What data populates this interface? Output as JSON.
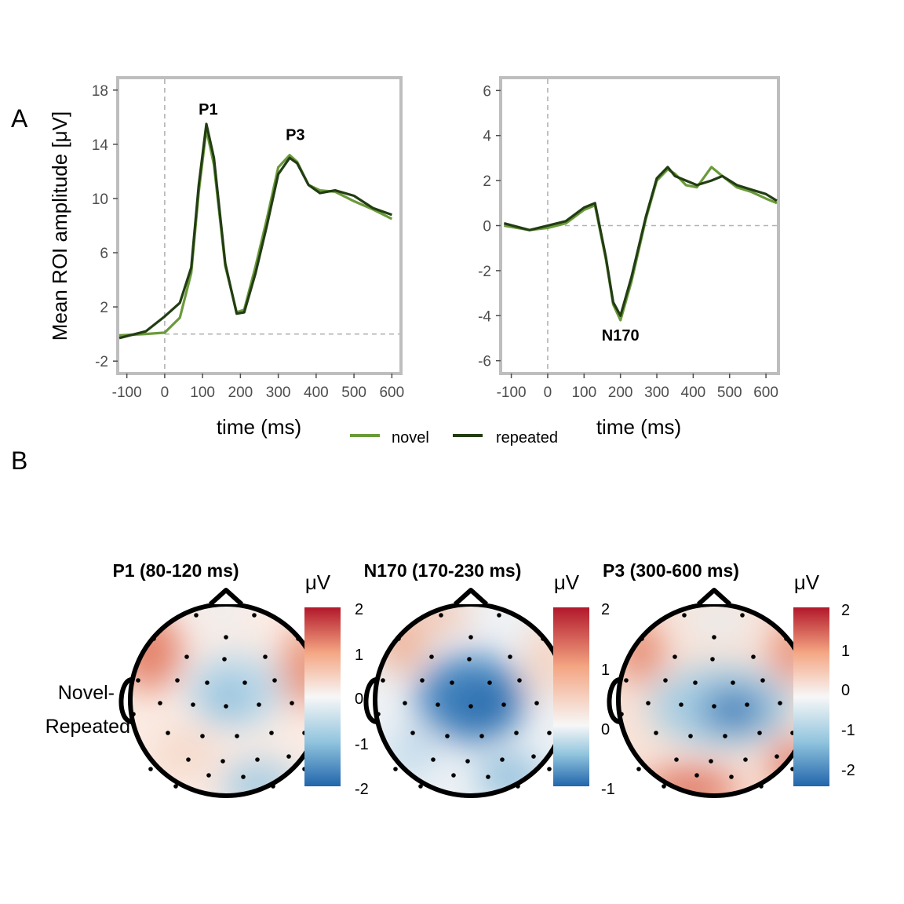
{
  "panel_labels": [
    "A",
    "B"
  ],
  "colors": {
    "novel": "#6a9a3a",
    "repeated": "#223d13"
  },
  "legend": [
    {
      "label": "novel",
      "color": "#6a9a3a"
    },
    {
      "label": "repeated",
      "color": "#223d13"
    }
  ],
  "chart_data": [
    {
      "type": "line",
      "xlabel": "time (ms)",
      "ylabel": "Mean ROI amplitude [μV]",
      "xlim": [
        -120,
        620
      ],
      "ylim": [
        -2.8,
        18.8
      ],
      "xticks": [
        -100,
        0,
        100,
        200,
        300,
        400,
        500,
        600
      ],
      "yticks": [
        -2,
        2,
        6,
        10,
        14,
        18
      ],
      "reference_lines": {
        "x": 0,
        "y": 0
      },
      "annotations": [
        {
          "text": "P1",
          "x": 115,
          "y": 16.2
        },
        {
          "text": "P3",
          "x": 345,
          "y": 14.3
        }
      ],
      "series": [
        {
          "name": "novel",
          "x": [
            -120,
            -50,
            0,
            40,
            70,
            90,
            110,
            130,
            160,
            190,
            210,
            240,
            270,
            300,
            330,
            350,
            380,
            410,
            450,
            500,
            550,
            600
          ],
          "y": [
            -0.1,
            0,
            0.1,
            1.2,
            4.5,
            10.5,
            15.1,
            12.5,
            5,
            1.6,
            1.8,
            5,
            8.5,
            12.3,
            13.2,
            12.7,
            11,
            10.6,
            10.5,
            9.8,
            9.2,
            8.5
          ]
        },
        {
          "name": "repeated",
          "x": [
            -120,
            -50,
            0,
            40,
            70,
            90,
            110,
            130,
            160,
            190,
            210,
            240,
            270,
            300,
            330,
            350,
            380,
            410,
            450,
            500,
            550,
            600
          ],
          "y": [
            -0.3,
            0.2,
            1.3,
            2.3,
            4.9,
            11,
            15.5,
            13,
            5.2,
            1.5,
            1.6,
            4.5,
            8,
            11.8,
            13,
            12.6,
            11,
            10.4,
            10.6,
            10.2,
            9.3,
            8.8
          ]
        }
      ]
    },
    {
      "type": "line",
      "xlabel": "time (ms)",
      "ylabel": "",
      "xlim": [
        -125,
        630
      ],
      "ylim": [
        -6.5,
        6.5
      ],
      "xticks": [
        -100,
        0,
        100,
        200,
        300,
        400,
        500,
        600
      ],
      "yticks": [
        -6,
        -4,
        -2,
        0,
        2,
        4,
        6
      ],
      "reference_lines": {
        "x": 0,
        "y": 0
      },
      "annotations": [
        {
          "text": "N170",
          "x": 200,
          "y": -5.1
        }
      ],
      "series": [
        {
          "name": "novel",
          "x": [
            -120,
            -50,
            0,
            50,
            100,
            130,
            160,
            180,
            200,
            230,
            270,
            300,
            330,
            350,
            380,
            410,
            450,
            480,
            520,
            560,
            600,
            630
          ],
          "y": [
            0,
            -0.2,
            -0.1,
            0.1,
            0.7,
            0.9,
            -1.5,
            -3.5,
            -4.2,
            -2.5,
            0.3,
            2,
            2.5,
            2.3,
            1.8,
            1.7,
            2.6,
            2.2,
            1.7,
            1.5,
            1.2,
            1
          ]
        },
        {
          "name": "repeated",
          "x": [
            -120,
            -50,
            0,
            50,
            100,
            130,
            160,
            180,
            200,
            230,
            270,
            300,
            330,
            350,
            380,
            410,
            450,
            480,
            520,
            560,
            600,
            630
          ],
          "y": [
            0.1,
            -0.2,
            0,
            0.2,
            0.8,
            1,
            -1.4,
            -3.4,
            -4,
            -2.3,
            0.4,
            2.1,
            2.6,
            2.2,
            2,
            1.8,
            2,
            2.2,
            1.8,
            1.6,
            1.4,
            1.1
          ]
        }
      ]
    }
  ],
  "topomaps": {
    "row_label": [
      "Novel-",
      "Repeated"
    ],
    "unit": "μV",
    "maps": [
      {
        "title": "P1 (80-120 ms)",
        "range": [
          -2,
          2
        ],
        "ticks": [
          2,
          1,
          0,
          -1,
          -2
        ]
      },
      {
        "title": "N170 (170-230 ms)",
        "range": [
          -1,
          2
        ],
        "ticks": [
          2,
          1,
          0,
          -1
        ]
      },
      {
        "title": "P3 (300-600 ms)",
        "range": [
          -2.5,
          2.2
        ],
        "ticks": [
          2,
          1,
          0,
          -1,
          -2
        ]
      }
    ]
  }
}
